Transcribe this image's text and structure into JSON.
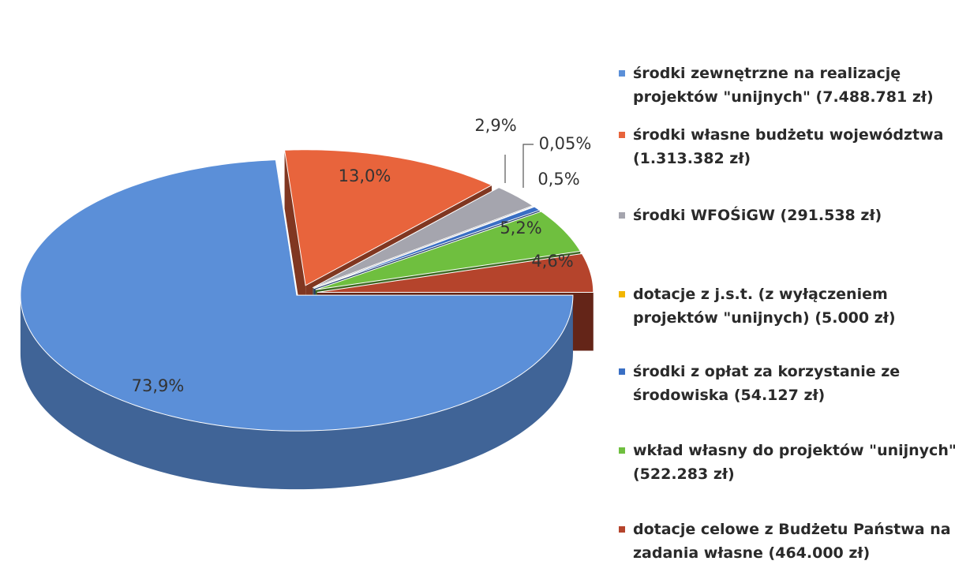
{
  "chart_data": {
    "type": "pie3d",
    "categories": [
      "środki zewnętrzne na realizację projektów \"unijnych\" (7.488.781 zł)",
      "środki własne budżetu województwa (1.313.382 zł)",
      "środki WFOŚiGW (291.538 zł)",
      "dotacje z j.s.t. (z wyłączeniem projektów \"unijnych) (5.000 zł)",
      "środki z opłat za korzystanie ze środowiska (54.127 zł)",
      "wkład własny do projektów \"unijnych\" (522.283 zł)",
      "dotacje celowe z Budżetu Państwa na zadania własne (464.000 zł)"
    ],
    "values": [
      73.9,
      13.0,
      2.9,
      0.05,
      0.5,
      5.2,
      4.6
    ],
    "value_labels": [
      "73,9%",
      "13,0%",
      "2,9%",
      "0,05%",
      "0,5%",
      "5,2%",
      "4,6%"
    ],
    "colors": [
      "#5b8fd8",
      "#e8643c",
      "#a5a5ae",
      "#f2b600",
      "#3a6fc4",
      "#6fbf3f",
      "#b5442c"
    ],
    "legend": "right"
  }
}
